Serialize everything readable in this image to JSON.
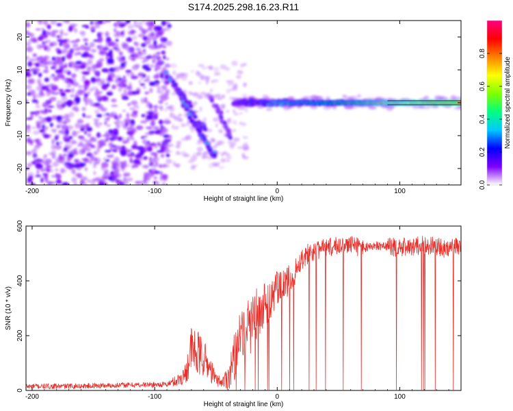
{
  "chart_data": [
    {
      "type": "heatmap",
      "title": "S174.2025.298.16.23.R11",
      "xlabel": "Height of straight line (km)",
      "ylabel": "Frequency (Hz)",
      "xlim": [
        -205,
        150
      ],
      "ylim": [
        -25,
        25
      ],
      "xticks": [
        -200,
        -100,
        0,
        100
      ],
      "xtick_labels": [
        "-200",
        "-100",
        "0",
        "100"
      ],
      "yticks": [
        -20,
        -10,
        0,
        10,
        20
      ],
      "ytick_labels": [
        "-20",
        "-10",
        "0",
        "10",
        "20"
      ],
      "colorbar": {
        "label": "Normalized spectral amplitude",
        "range": [
          0,
          1
        ],
        "ticks": [
          0.0,
          0.2,
          0.4,
          0.6,
          0.8
        ],
        "tick_labels": [
          "0.0",
          "0.2",
          "0.4",
          "0.6",
          "0.8"
        ],
        "colors": [
          "#ffffff",
          "#7f00ff",
          "#0000ff",
          "#00c8ff",
          "#00ff80",
          "#80ff00",
          "#ffff00",
          "#ff8000",
          "#ff0000",
          "#ff0080"
        ]
      },
      "features": [
        {
          "name": "noise-field",
          "x_range": [
            -205,
            -88
          ],
          "y_range": [
            -25,
            25
          ],
          "amplitude": 0.1
        },
        {
          "name": "drifting-track-1",
          "points": [
            [
              -90,
              9
            ],
            [
              -80,
              3
            ],
            [
              -70,
              -5
            ],
            [
              -62,
              -10
            ],
            [
              -55,
              -14
            ],
            [
              -50,
              -17
            ]
          ],
          "amplitude": 0.3
        },
        {
          "name": "drifting-track-2",
          "points": [
            [
              -85,
              6
            ],
            [
              -75,
              1
            ],
            [
              -65,
              -6
            ],
            [
              -58,
              -8
            ]
          ],
          "amplitude": 0.25
        },
        {
          "name": "drifting-track-3",
          "points": [
            [
              -55,
              2
            ],
            [
              -48,
              -2
            ],
            [
              -42,
              -7
            ],
            [
              -38,
              -11
            ]
          ],
          "amplitude": 0.2
        },
        {
          "name": "carrier-line",
          "x_range": [
            -35,
            150
          ],
          "frequency": 0,
          "amplitude_start": 0.2,
          "amplitude_end": 0.95
        }
      ]
    },
    {
      "type": "line",
      "xlabel": "Height of straight line (km)",
      "ylabel": "SNR (10 * v/v)",
      "xlim": [
        -205,
        150
      ],
      "ylim": [
        0,
        600
      ],
      "xticks": [
        -200,
        -100,
        0,
        100
      ],
      "xtick_labels": [
        "-200",
        "-100",
        "0",
        "100"
      ],
      "yticks": [
        0,
        200,
        400,
        600
      ],
      "ytick_labels": [
        "0",
        "200",
        "400",
        "600"
      ],
      "series": [
        {
          "name": "SNR",
          "color": "#e8302b",
          "x": [
            -205,
            -180,
            -150,
            -120,
            -90,
            -80,
            -75,
            -70,
            -65,
            -60,
            -55,
            -50,
            -45,
            -40,
            -35,
            -30,
            -25,
            -20,
            -15,
            -10,
            -5,
            0,
            5,
            10,
            15,
            20,
            25,
            30,
            40,
            50,
            60,
            70,
            80,
            90,
            100,
            110,
            120,
            130,
            140,
            150
          ],
          "y": [
            15,
            15,
            17,
            20,
            22,
            40,
            60,
            150,
            130,
            120,
            80,
            40,
            30,
            50,
            120,
            180,
            220,
            260,
            280,
            310,
            340,
            370,
            380,
            400,
            440,
            480,
            500,
            510,
            520,
            530,
            530,
            520,
            530,
            525,
            520,
            525,
            530,
            525,
            515,
            530
          ],
          "noise": [
            10,
            10,
            10,
            10,
            10,
            25,
            40,
            90,
            90,
            70,
            50,
            25,
            20,
            50,
            90,
            110,
            120,
            110,
            100,
            90,
            80,
            70,
            60,
            60,
            50,
            40,
            40,
            35,
            35,
            35,
            35,
            35,
            35,
            35,
            35,
            35,
            35,
            35,
            35,
            35
          ]
        }
      ]
    }
  ]
}
